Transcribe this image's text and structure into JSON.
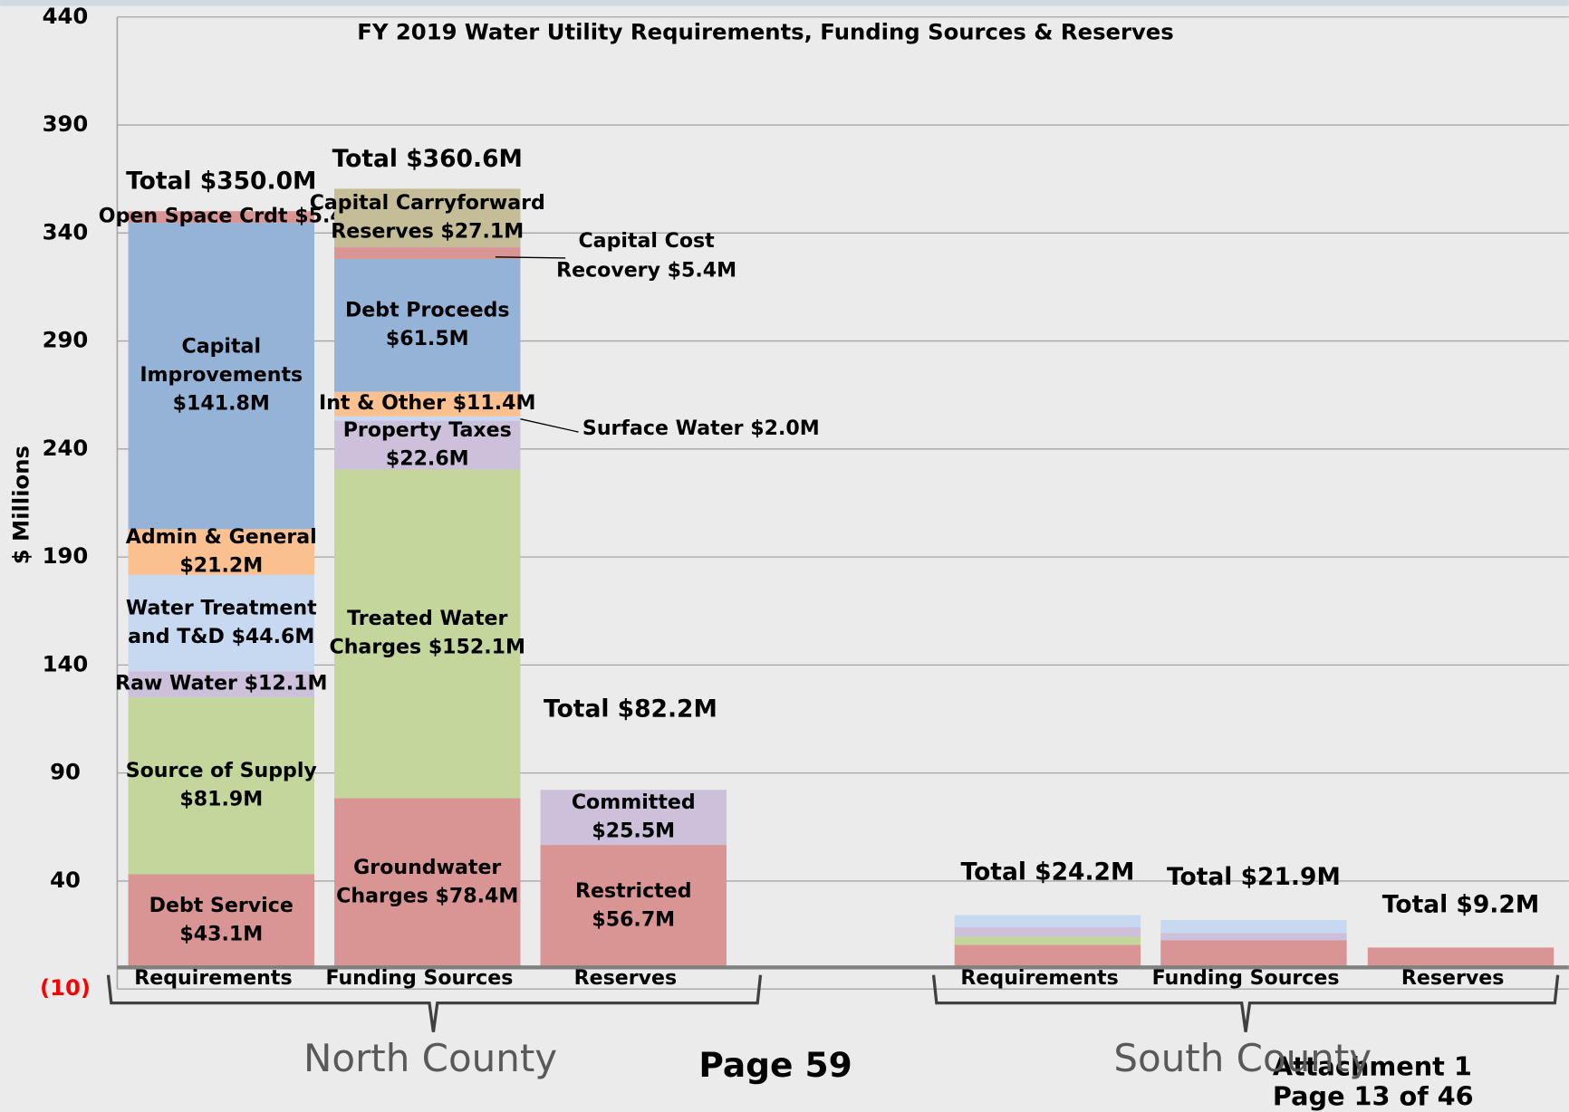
{
  "chart_data": {
    "type": "stacked-bar",
    "title": "FY 2019 Water Utility Requirements, Funding Sources & Reserves",
    "y_label": "$ Millions",
    "ylim": [
      -10,
      440
    ],
    "yticks": [
      {
        "value": -10,
        "label": "(10)",
        "color": "#ff0000"
      },
      40,
      90,
      140,
      190,
      240,
      290,
      340,
      390,
      440
    ],
    "grid": true,
    "groups": [
      {
        "name": "North County",
        "bars": [
          {
            "category": "Requirements",
            "total_label": "Total $350.0M",
            "segments": [
              {
                "label": [
                  "Debt Service",
                  "$43.1M"
                ],
                "value": 43.1,
                "color": "#d99594"
              },
              {
                "label": [
                  "Source of Supply",
                  "$81.9M"
                ],
                "value": 81.9,
                "color": "#c3d69b"
              },
              {
                "label": [
                  "Raw Water $12.1M"
                ],
                "value": 12.1,
                "color": "#ccc0da"
              },
              {
                "label": [
                  "Water Treatment",
                  "and T&D $44.6M"
                ],
                "value": 44.6,
                "color": "#c6d9f1"
              },
              {
                "label": [
                  "Admin & General",
                  "$21.2M"
                ],
                "value": 21.2,
                "color": "#fac090"
              },
              {
                "label": [
                  "Capital",
                  "Improvements",
                  "$141.8M"
                ],
                "value": 141.8,
                "color": "#95b3d7"
              },
              {
                "label": [
                  "Open Space Crdt $5.4"
                ],
                "value": 5.4,
                "color": "#d99594"
              }
            ]
          },
          {
            "category": "Funding Sources",
            "total_label": "Total $360.6M",
            "segments": [
              {
                "label": [
                  "Groundwater",
                  "Charges $78.4M"
                ],
                "value": 78.4,
                "color": "#d99594"
              },
              {
                "label": [
                  "Treated Water",
                  "Charges $152.1M"
                ],
                "value": 152.1,
                "color": "#c3d69b"
              },
              {
                "label": [
                  "Property Taxes",
                  "$22.6M"
                ],
                "value": 22.6,
                "color": "#ccc0da"
              },
              {
                "label": [
                  "Surface Water $2.0M"
                ],
                "value": 2.0,
                "color": "#c6d9f1",
                "label_outside": true
              },
              {
                "label": [
                  "Int & Other $11.4M"
                ],
                "value": 11.4,
                "color": "#fac090"
              },
              {
                "label": [
                  "Debt Proceeds",
                  "$61.5M"
                ],
                "value": 61.5,
                "color": "#95b3d7"
              },
              {
                "label": [
                  "Capital Cost",
                  "Recovery $5.4M"
                ],
                "value": 5.4,
                "color": "#d99594",
                "label_outside": true
              },
              {
                "label": [
                  "Capital Carryforward",
                  "Reserves $27.1M"
                ],
                "value": 27.1,
                "color": "#c4bd97"
              }
            ]
          },
          {
            "category": "Reserves",
            "total_label": "Total $82.2M",
            "segments": [
              {
                "label": [
                  "Restricted",
                  "$56.7M"
                ],
                "value": 56.7,
                "color": "#d99594"
              },
              {
                "label": [
                  "Committed",
                  "$25.5M"
                ],
                "value": 25.5,
                "color": "#ccc0da"
              }
            ]
          }
        ]
      },
      {
        "name": "South County",
        "bars": [
          {
            "category": "Requirements",
            "total_label": "Total $24.2M",
            "segments": [
              {
                "value": 10.5,
                "color": "#d99594"
              },
              {
                "value": 3.7,
                "color": "#c3d69b"
              },
              {
                "value": 4.5,
                "color": "#ccc0da"
              },
              {
                "value": 5.5,
                "color": "#c6d9f1"
              }
            ]
          },
          {
            "category": "Funding Sources",
            "total_label": "Total $21.9M",
            "segments": [
              {
                "value": 12.5,
                "color": "#d99594"
              },
              {
                "value": 3.4,
                "color": "#ccc0da"
              },
              {
                "value": 6.0,
                "color": "#c6d9f1"
              }
            ]
          },
          {
            "category": "Reserves",
            "total_label": "Total $9.2M",
            "segments": [
              {
                "value": 9.2,
                "color": "#d99594"
              }
            ]
          }
        ]
      }
    ],
    "footer": {
      "page": "Page 59",
      "attachment": "Attachment 1",
      "page_of": "Page 13 of 46"
    }
  }
}
